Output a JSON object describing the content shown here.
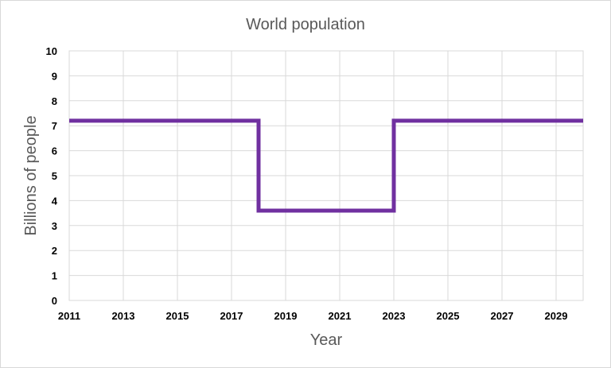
{
  "chart_data": {
    "type": "line",
    "step": true,
    "title": "World population",
    "xlabel": "Year",
    "ylabel": "Billions of people",
    "xlim": [
      2011,
      2030
    ],
    "ylim": [
      0,
      10
    ],
    "x_ticks": [
      2011,
      2013,
      2015,
      2017,
      2019,
      2021,
      2023,
      2025,
      2027,
      2029
    ],
    "y_ticks": [
      0,
      1,
      2,
      3,
      4,
      5,
      6,
      7,
      8,
      9,
      10
    ],
    "grid": true,
    "legend": "none",
    "series": [
      {
        "color": "#7030a0",
        "points": [
          {
            "x": 2011,
            "y": 7.2
          },
          {
            "x": 2018,
            "y": 7.2
          },
          {
            "x": 2018,
            "y": 3.6
          },
          {
            "x": 2023,
            "y": 3.6
          },
          {
            "x": 2023,
            "y": 7.2
          },
          {
            "x": 2030,
            "y": 7.2
          }
        ]
      }
    ]
  }
}
